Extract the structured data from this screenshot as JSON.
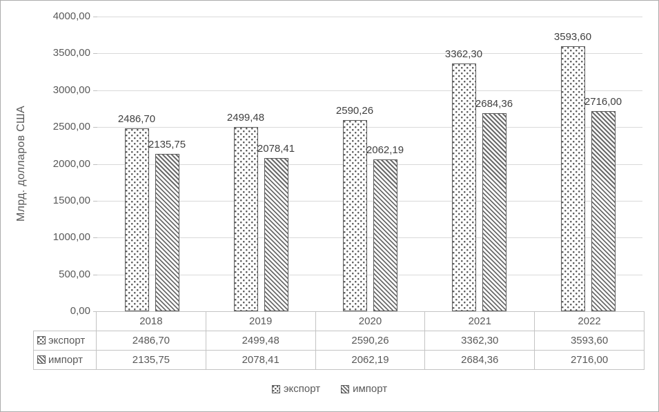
{
  "chart_data": {
    "type": "bar",
    "title": "",
    "ylabel": "Млрд. долларов США",
    "xlabel": "",
    "categories": [
      "2018",
      "2019",
      "2020",
      "2021",
      "2022"
    ],
    "series": [
      {
        "name": "экспорт",
        "pattern": "dotted",
        "values": [
          2486.7,
          2499.48,
          2590.26,
          3362.3,
          3593.6
        ],
        "labels": [
          "2486,70",
          "2499,48",
          "2590,26",
          "3362,30",
          "3593,60"
        ]
      },
      {
        "name": "импорт",
        "pattern": "hatch",
        "values": [
          2135.75,
          2078.41,
          2062.19,
          2684.36,
          2716.0
        ],
        "labels": [
          "2135,75",
          "2078,41",
          "2062,19",
          "2684,36",
          "2716,00"
        ]
      }
    ],
    "ylim": [
      0,
      4000
    ],
    "ytick_step": 500,
    "ytick_labels": [
      "0,00",
      "500,00",
      "1000,00",
      "1500,00",
      "2000,00",
      "2500,00",
      "3000,00",
      "3500,00",
      "4000,00"
    ],
    "grid": true,
    "legend_position": "bottom",
    "has_data_table": true
  },
  "colors": {
    "pattern_foreground": "#595959",
    "bar_border": "#595959",
    "gridline": "#d9d9d9",
    "axis_line": "#bfbfbf",
    "text": "#595959",
    "data_label_text": "#404040",
    "table_border": "#c3c3c3",
    "background": "#ffffff",
    "outer_border": "#ababab"
  }
}
